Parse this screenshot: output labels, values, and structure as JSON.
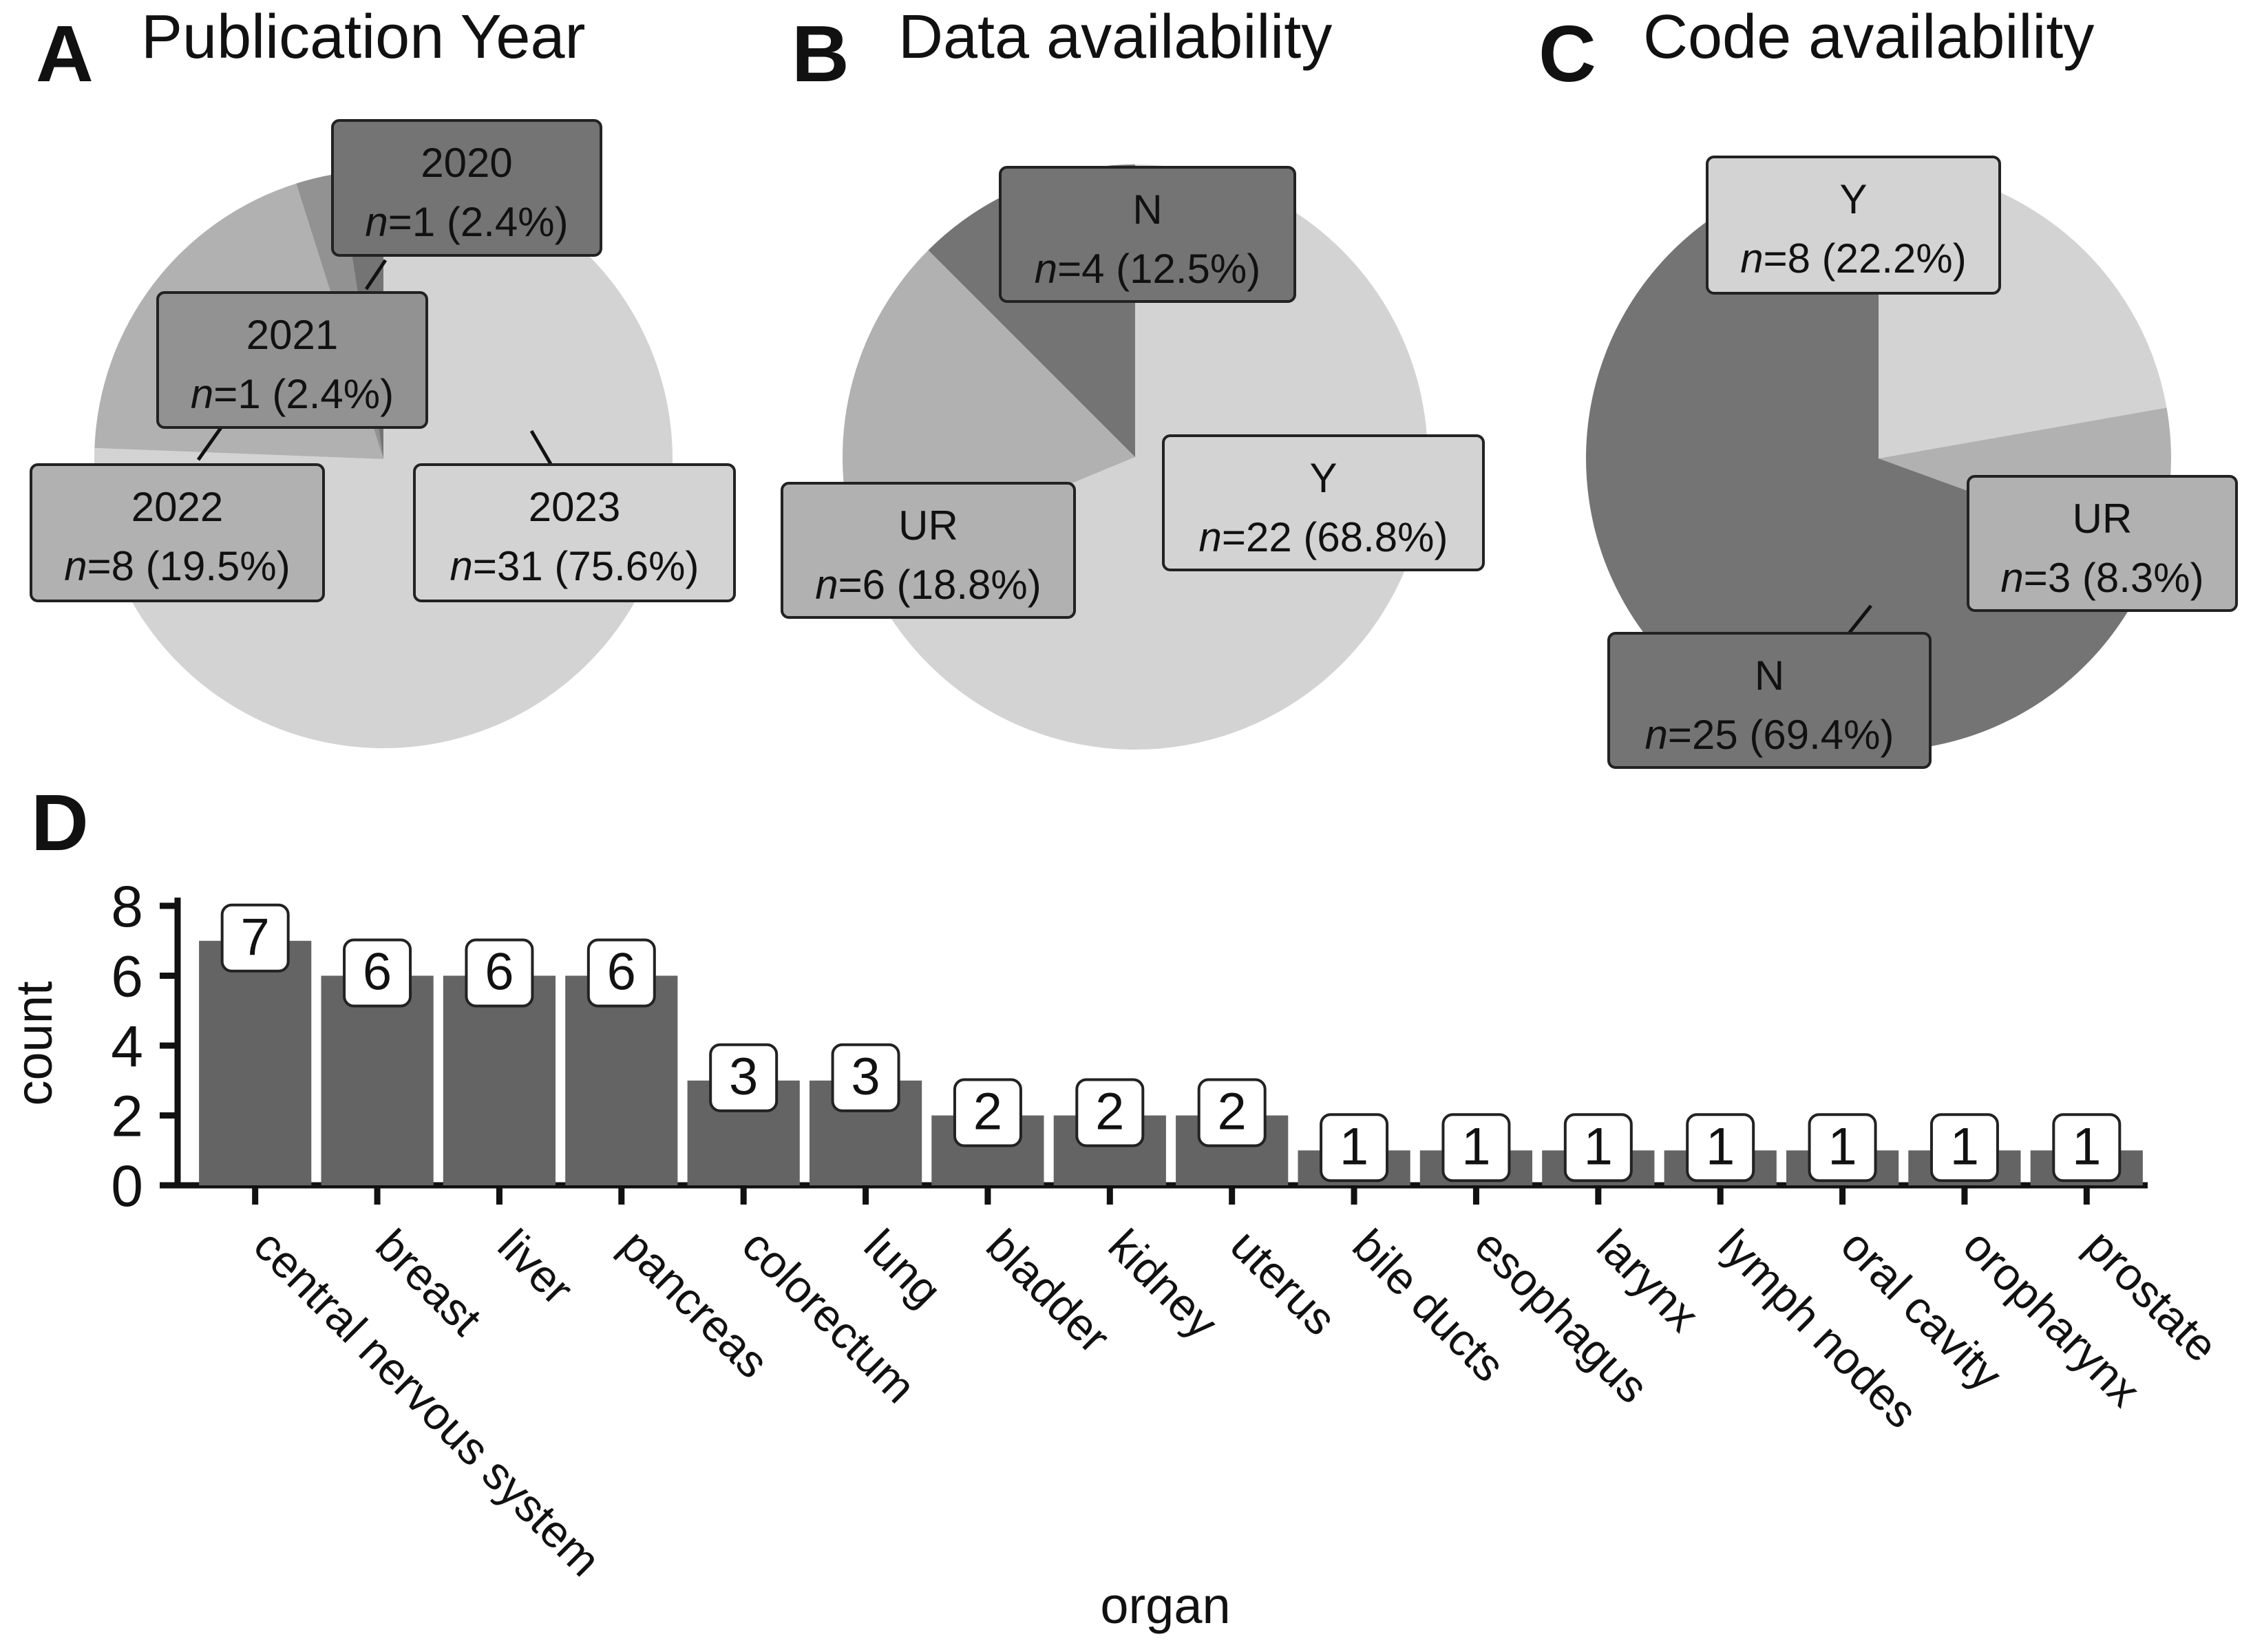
{
  "chart_data": [
    {
      "id": "A",
      "type": "pie",
      "panel_letter": "A",
      "title": "Publication Year",
      "colors": [
        "#d3d3d3",
        "#b1b1b1",
        "#929292",
        "#747474"
      ],
      "slices": [
        {
          "label": "2023",
          "value": 31,
          "n_text": "n",
          "count_text": "=31 (75.6%)",
          "color": "#d3d3d3"
        },
        {
          "label": "2022",
          "value": 8,
          "n_text": "n",
          "count_text": "=8 (19.5%)",
          "color": "#b1b1b1"
        },
        {
          "label": "2021",
          "value": 1,
          "n_text": "n",
          "count_text": "=1 (2.4%)",
          "color": "#929292"
        },
        {
          "label": "2020",
          "value": 1,
          "n_text": "n",
          "count_text": "=1 (2.4%)",
          "color": "#747474"
        }
      ]
    },
    {
      "id": "B",
      "type": "pie",
      "panel_letter": "B",
      "title": "Data availability",
      "slices": [
        {
          "label": "Y",
          "value": 22,
          "n_text": "n",
          "count_text": "=22 (68.8%)",
          "color": "#d3d3d3"
        },
        {
          "label": "UR",
          "value": 6,
          "n_text": "n",
          "count_text": "=6 (18.8%)",
          "color": "#b1b1b1"
        },
        {
          "label": "N",
          "value": 4,
          "n_text": "n",
          "count_text": "=4 (12.5%)",
          "color": "#747474"
        }
      ]
    },
    {
      "id": "C",
      "type": "pie",
      "panel_letter": "C",
      "title": "Code availability",
      "slices": [
        {
          "label": "Y",
          "value": 8,
          "n_text": "n",
          "count_text": "=8 (22.2%)",
          "color": "#d3d3d3"
        },
        {
          "label": "UR",
          "value": 3,
          "n_text": "n",
          "count_text": "=3 (8.3%)",
          "color": "#b1b1b1"
        },
        {
          "label": "N",
          "value": 25,
          "n_text": "n",
          "count_text": "=25 (69.4%)",
          "color": "#747474"
        }
      ]
    },
    {
      "id": "D",
      "type": "bar",
      "panel_letter": "D",
      "categories": [
        "central nervous system",
        "breast",
        "liver",
        "pancreas",
        "colorectum",
        "lung",
        "bladder",
        "kidney",
        "uterus",
        "bile ducts",
        "esophagus",
        "larynx",
        "lymph nodes",
        "oral cavity",
        "oropharynx",
        "prostate"
      ],
      "values": [
        7,
        6,
        6,
        6,
        3,
        3,
        2,
        2,
        2,
        1,
        1,
        1,
        1,
        1,
        1,
        1
      ],
      "value_labels": [
        "7",
        "6",
        "6",
        "6",
        "3",
        "3",
        "2",
        "2",
        "2",
        "1",
        "1",
        "1",
        "1",
        "1",
        "1",
        "1"
      ],
      "xlabel": "organ",
      "ylabel": "count",
      "ylim": [
        0,
        8
      ],
      "yticks": [
        0,
        2,
        4,
        6,
        8
      ],
      "ytick_labels": [
        "0",
        "2",
        "4",
        "6",
        "8"
      ],
      "bar_color": "#646464"
    }
  ]
}
